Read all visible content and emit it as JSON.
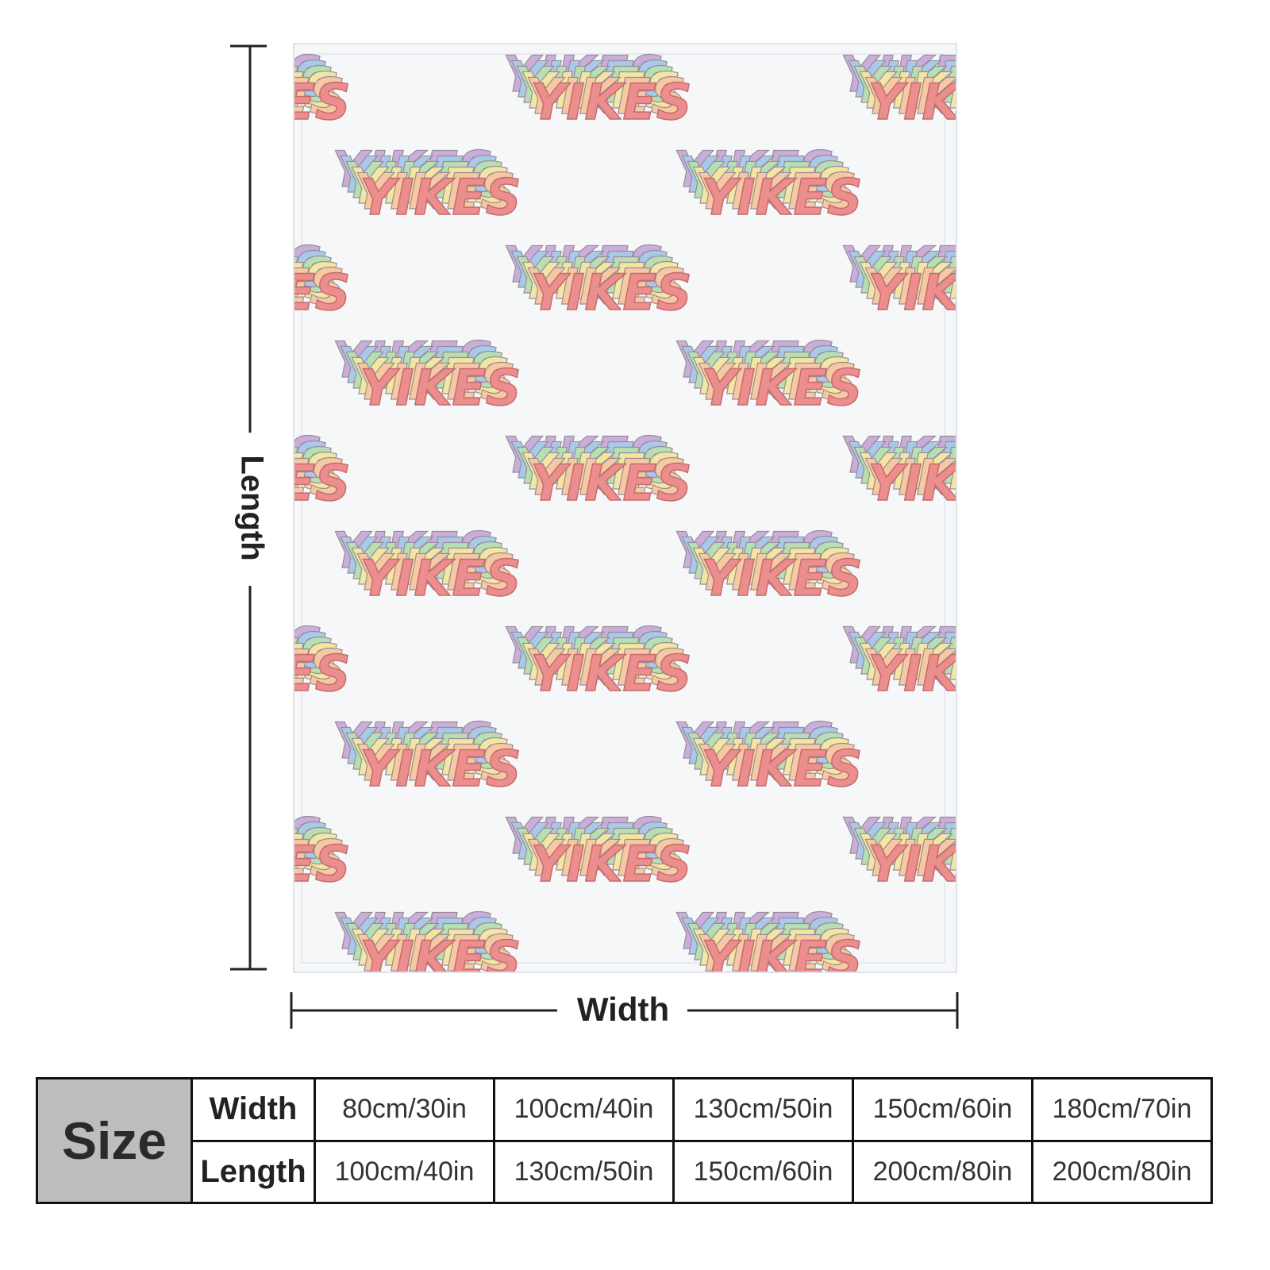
{
  "dimensions": {
    "length": "Length",
    "width": "Width"
  },
  "pattern": {
    "text": "YIKES"
  },
  "size_table": {
    "title": "Size",
    "rows": [
      {
        "label": "Width",
        "values": [
          "80cm/30in",
          "100cm/40in",
          "130cm/50in",
          "150cm/60in",
          "180cm/70in"
        ]
      },
      {
        "label": "Length",
        "values": [
          "100cm/40in",
          "130cm/50in",
          "150cm/60in",
          "200cm/80in",
          "200cm/80in"
        ]
      }
    ]
  }
}
